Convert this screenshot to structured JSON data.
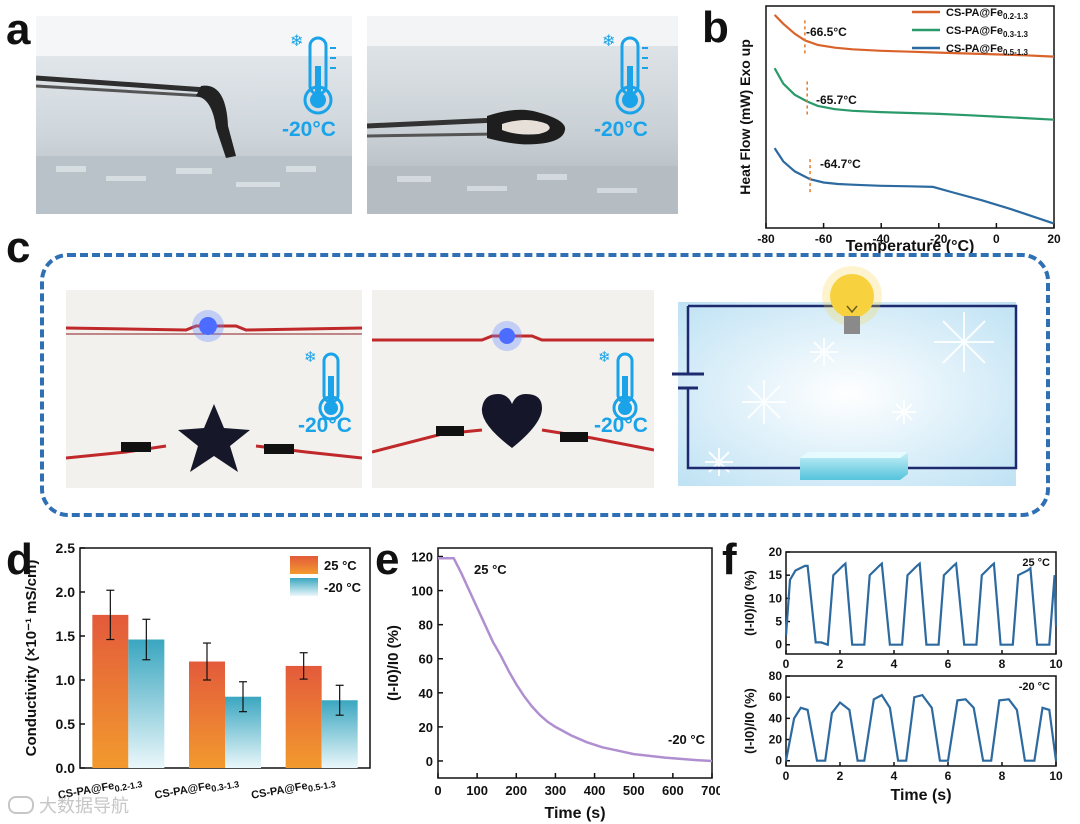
{
  "panels": {
    "a": "a",
    "b": "b",
    "c": "c",
    "d": "d",
    "e": "e",
    "f": "f"
  },
  "temperature_labels": {
    "a1": "-20°C",
    "a2": "-20°C",
    "c1": "-20°C",
    "c2": "-20°C"
  },
  "watermark": {
    "text": "大数据导航"
  },
  "colors": {
    "orange": "#d9622b",
    "green": "#2a9a6a",
    "blue": "#2d6aa0",
    "purple": "#b08fd0",
    "bar_top": "#e8633a",
    "bar2_top": "#3aa6c0",
    "thermo": "#1aa3e8",
    "dash": "#2f6fb3"
  },
  "chart_data": [
    {
      "id": "b",
      "type": "line",
      "xlabel": "Temperature (°C)",
      "ylabel": "Heat Flow (mW) Exo up",
      "xlim": [
        -80,
        20
      ],
      "xticks": [
        "-80",
        "-60",
        "-40",
        "-20",
        "0",
        "20"
      ],
      "series": [
        {
          "name": "CS-PA@Fe",
          "sub": "0.2-1.3",
          "tg": "-66.5°C",
          "color": "#d9622b",
          "x": [
            -77,
            -74,
            -70,
            -66.5,
            -62,
            -56,
            -50,
            -40,
            -30,
            -20,
            -10,
            0,
            10,
            20
          ],
          "y": [
            9.6,
            9.2,
            8.75,
            8.45,
            8.25,
            8.12,
            8.05,
            7.98,
            7.94,
            7.9,
            7.86,
            7.82,
            7.78,
            7.72
          ]
        },
        {
          "name": "CS-PA@Fe",
          "sub": "0.3-1.3",
          "tg": "-65.7°C",
          "color": "#2a9a6a",
          "x": [
            -77,
            -74,
            -70,
            -65.7,
            -62,
            -56,
            -50,
            -40,
            -30,
            -20,
            -10,
            0,
            10,
            20
          ],
          "y": [
            7.2,
            6.5,
            6.0,
            5.7,
            5.5,
            5.35,
            5.28,
            5.22,
            5.18,
            5.14,
            5.08,
            5.02,
            4.95,
            4.88
          ]
        },
        {
          "name": "CS-PA@Fe",
          "sub": "0.5-1.3",
          "tg": "-64.7°C",
          "color": "#2d6aa0",
          "x": [
            -77,
            -74,
            -70,
            -64.7,
            -60,
            -55,
            -50,
            -40,
            -30,
            -22,
            -15,
            -5,
            5,
            20
          ],
          "y": [
            3.6,
            3.0,
            2.55,
            2.2,
            2.05,
            1.98,
            1.95,
            1.9,
            1.88,
            1.85,
            1.6,
            1.25,
            0.85,
            0.2
          ]
        }
      ],
      "tg_x": [
        -66.5,
        -65.7,
        -64.7
      ]
    },
    {
      "id": "d",
      "type": "bar",
      "ylabel": "Conductivity (×10⁻¹ mS/cm)",
      "ylim": [
        0,
        2.5
      ],
      "yticks": [
        "0.0",
        "0.5",
        "1.0",
        "1.5",
        "2.0",
        "2.5"
      ],
      "categories": [
        "CS-PA@Fe0.2-1.3",
        "CS-PA@Fe0.3-1.3",
        "CS-PA@Fe0.5-1.3"
      ],
      "cat_prefix": "CS-PA@Fe",
      "cat_subs": [
        "0.2-1.3",
        "0.3-1.3",
        "0.5-1.3"
      ],
      "series": [
        {
          "name": "25 °C",
          "values": [
            1.74,
            1.21,
            1.16
          ],
          "errors": [
            0.28,
            0.21,
            0.15
          ]
        },
        {
          "name": "-20 °C",
          "values": [
            1.46,
            0.81,
            0.77
          ],
          "errors": [
            0.23,
            0.17,
            0.17
          ]
        }
      ]
    },
    {
      "id": "e",
      "type": "line",
      "xlabel": "Time (s)",
      "ylabel": "(I-I0)/I0 (%)",
      "xlim": [
        0,
        700
      ],
      "ylim": [
        -10,
        125
      ],
      "xticks": [
        "0",
        "100",
        "200",
        "300",
        "400",
        "500",
        "600",
        "700"
      ],
      "yticks": [
        "0",
        "20",
        "40",
        "60",
        "80",
        "100",
        "120"
      ],
      "annotations": [
        "25 °C",
        "-20 °C"
      ],
      "x": [
        0,
        20,
        40,
        60,
        80,
        100,
        120,
        140,
        160,
        180,
        200,
        220,
        240,
        260,
        280,
        300,
        340,
        380,
        420,
        460,
        500,
        540,
        580,
        620,
        660,
        700
      ],
      "y": [
        119,
        119,
        119,
        110,
        100,
        90,
        80,
        70,
        62,
        53,
        45,
        38,
        32,
        27,
        23,
        20,
        15,
        11,
        8,
        6,
        4,
        3,
        2,
        1.2,
        0.5,
        0
      ]
    },
    {
      "id": "f_top",
      "type": "line",
      "xlabel": "",
      "ylabel": "(I-I0)/I0 (%)",
      "xlim": [
        0,
        10
      ],
      "ylim": [
        -2,
        20
      ],
      "xticks": [
        "0",
        "2",
        "4",
        "6",
        "8",
        "10"
      ],
      "yticks": [
        "0",
        "5",
        "10",
        "15",
        "20"
      ],
      "label": "25 °C",
      "x": [
        0,
        0.15,
        0.35,
        0.7,
        0.8,
        1.1,
        1.3,
        1.55,
        1.75,
        2.1,
        2.2,
        2.45,
        2.65,
        2.9,
        3.1,
        3.45,
        3.55,
        3.85,
        4.05,
        4.3,
        4.5,
        4.85,
        4.95,
        5.2,
        5.4,
        5.65,
        5.85,
        6.2,
        6.3,
        6.6,
        6.8,
        7.05,
        7.25,
        7.6,
        7.7,
        7.95,
        8.15,
        8.4,
        8.6,
        8.95,
        9.05,
        9.3,
        9.5,
        9.75,
        9.95,
        10
      ],
      "y": [
        2,
        14,
        16,
        17,
        17,
        0.5,
        0.5,
        0,
        15,
        17,
        17.5,
        0,
        0,
        0,
        15,
        17,
        17.5,
        0,
        0,
        0,
        15,
        17,
        17.5,
        0,
        0,
        0,
        15,
        17,
        17.5,
        0,
        0,
        0,
        15,
        17,
        17.5,
        0,
        0,
        0,
        15,
        16,
        16.5,
        0,
        0,
        0,
        15,
        4
      ]
    },
    {
      "id": "f_bottom",
      "type": "line",
      "xlabel": "Time (s)",
      "ylabel": "(I-I0)/I0 (%)",
      "xlim": [
        0,
        10
      ],
      "ylim": [
        -5,
        80
      ],
      "xticks": [
        "0",
        "2",
        "4",
        "6",
        "8",
        "10"
      ],
      "yticks": [
        "0",
        "20",
        "40",
        "60",
        "80"
      ],
      "label": "-20 °C",
      "x": [
        0,
        0.3,
        0.55,
        0.8,
        1.15,
        1.45,
        1.7,
        2.0,
        2.35,
        2.65,
        2.9,
        3.25,
        3.55,
        3.85,
        4.15,
        4.45,
        4.75,
        5.05,
        5.4,
        5.7,
        6.0,
        6.35,
        6.65,
        6.95,
        7.3,
        7.6,
        7.9,
        8.25,
        8.55,
        8.85,
        9.2,
        9.5,
        9.75,
        10
      ],
      "y": [
        0,
        40,
        50,
        48,
        0,
        0,
        45,
        55,
        48,
        0,
        0,
        58,
        62,
        50,
        0,
        0,
        60,
        62,
        50,
        0,
        0,
        57,
        58,
        50,
        0,
        0,
        57,
        58,
        48,
        0,
        0,
        50,
        48,
        0
      ]
    }
  ]
}
